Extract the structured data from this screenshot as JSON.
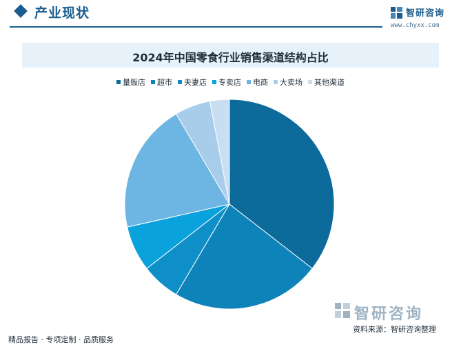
{
  "header": {
    "title": "产业现状"
  },
  "logo": {
    "name": "智研咨询",
    "url": "www.chyxx.com"
  },
  "footer": {
    "left_text": "精品报告 · 专项定制 · 品质服务",
    "logo_text": "智研咨询",
    "source": "资料来源：智研咨询整理"
  },
  "colors": {
    "brand": "#1c5d8e"
  },
  "chart_data": {
    "type": "pie",
    "title": "2024年中国零食行业销售渠道结构占比",
    "legend_position": "top",
    "start_angle_deg": 0,
    "direction": "clockwise",
    "slices": [
      {
        "label": "量贩店",
        "value": 35.5,
        "color": "#0c6b9b"
      },
      {
        "label": "超市",
        "value": 23.0,
        "color": "#0d83b9"
      },
      {
        "label": "夫妻店",
        "value": 6.0,
        "color": "#0f8fc7"
      },
      {
        "label": "专卖店",
        "value": 7.0,
        "color": "#0aa2dc"
      },
      {
        "label": "电商",
        "value": 20.0,
        "color": "#6db5e2"
      },
      {
        "label": "大卖场",
        "value": 5.5,
        "color": "#a7cdeb"
      },
      {
        "label": "其他渠道",
        "value": 3.0,
        "color": "#c8def2"
      }
    ]
  }
}
